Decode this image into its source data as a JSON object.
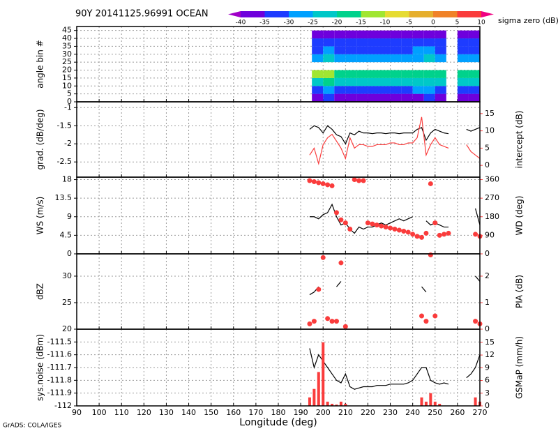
{
  "title": "90Y 20141125.96991 OCEAN",
  "footer": "GrADS: COLA/IGES",
  "colorbar": {
    "label": "sigma zero (dB)",
    "levels": [
      -40,
      -35,
      -30,
      -25,
      -20,
      -15,
      -10,
      -5,
      0,
      5,
      10
    ],
    "colors": [
      "#a000c8",
      "#6e00dc",
      "#1e3cff",
      "#00a0ff",
      "#00c8c8",
      "#00d28c",
      "#a0e632",
      "#e6dc32",
      "#e6af2d",
      "#f08228",
      "#fa3c3c",
      "#f00082"
    ]
  },
  "chart_data": [
    {
      "type": "heatmap",
      "ylabel": "angle bin #",
      "xlim": [
        90,
        270
      ],
      "xticks": [
        90,
        100,
        110,
        120,
        130,
        140,
        150,
        160,
        170,
        180,
        190,
        200,
        210,
        220,
        230,
        240,
        250,
        260,
        270
      ],
      "ylim": [
        0,
        47.5
      ],
      "yticks": [
        0,
        5,
        10,
        15,
        20,
        25,
        30,
        35,
        40,
        45
      ],
      "grid": true,
      "xbins": [
        195,
        200,
        205,
        210,
        215,
        220,
        225,
        230,
        235,
        240,
        245,
        250,
        255,
        260,
        265,
        270
      ],
      "ybins": [
        0,
        5,
        10,
        15,
        20,
        25,
        30,
        35,
        40,
        45
      ],
      "values": [
        [
          -38,
          -34,
          -38,
          -38,
          -38,
          -38,
          -38,
          -38,
          -38,
          -36,
          -34,
          -38,
          null,
          -38,
          -38
        ],
        [
          -32,
          -28,
          -32,
          -32,
          -32,
          -32,
          -32,
          -32,
          -32,
          -30,
          -29,
          -32,
          null,
          -32,
          -32
        ],
        [
          -24,
          -20,
          -24,
          -25,
          -24,
          -24,
          -24,
          -24,
          -24,
          -24,
          -22,
          -24,
          null,
          -24,
          -24
        ],
        [
          -12,
          -14,
          -18,
          -18,
          -18,
          -18,
          -18,
          -18,
          -18,
          -18,
          -18,
          -18,
          null,
          -18,
          -18
        ],
        [
          null,
          null,
          null,
          null,
          null,
          null,
          null,
          null,
          null,
          null,
          null,
          null,
          null,
          null,
          null
        ],
        [
          -26,
          -22,
          -26,
          -26,
          -26,
          -26,
          -26,
          -26,
          -26,
          -26,
          -24,
          -26,
          null,
          -26,
          -26
        ],
        [
          -31,
          -28,
          -31,
          -31,
          -31,
          -31,
          -31,
          -31,
          -31,
          -30,
          -28,
          -31,
          null,
          -31,
          -31
        ],
        [
          -35,
          -33,
          -35,
          -35,
          -35,
          -35,
          -35,
          -35,
          -35,
          -34,
          -33,
          -35,
          null,
          -35,
          -35
        ],
        [
          -39,
          -37,
          -39,
          -39,
          -39,
          -39,
          -39,
          -39,
          -39,
          -39,
          -37,
          -39,
          null,
          -39,
          -39
        ]
      ]
    },
    {
      "type": "line",
      "ylabel": "grad. (dB/deg)",
      "y2label": "intercept (dB)",
      "xlim": [
        90,
        270
      ],
      "xticks": [
        90,
        100,
        110,
        120,
        130,
        140,
        150,
        160,
        170,
        180,
        190,
        200,
        210,
        220,
        230,
        240,
        250,
        260,
        270
      ],
      "ylim": [
        -2.92,
        -0.84
      ],
      "yticks": [
        -2.5,
        -2,
        -1.5,
        -1
      ],
      "y2lim": [
        -3.4,
        18.4
      ],
      "y2ticks": [
        0,
        5,
        10,
        15
      ],
      "grid": true,
      "x": [
        194,
        196,
        198,
        200,
        202,
        204,
        206,
        208,
        210,
        212,
        214,
        216,
        218,
        220,
        222,
        224,
        226,
        228,
        230,
        232,
        234,
        236,
        238,
        240,
        242,
        244,
        246,
        248,
        250,
        252,
        254,
        256,
        258,
        260,
        262,
        264,
        266,
        268,
        270
      ],
      "series": [
        {
          "color": "#000000",
          "style": "line",
          "values": [
            -1.6,
            -1.5,
            -1.55,
            -1.7,
            -1.5,
            -1.6,
            -1.75,
            -1.8,
            -2.0,
            -1.7,
            -1.75,
            -1.65,
            -1.7,
            -1.7,
            -1.72,
            -1.7,
            -1.7,
            -1.72,
            -1.7,
            -1.7,
            -1.72,
            -1.7,
            -1.7,
            -1.7,
            -1.6,
            -1.55,
            -1.9,
            -1.7,
            -1.6,
            -1.65,
            -1.7,
            -1.72,
            null,
            null,
            null,
            -1.6,
            -1.65,
            -1.6,
            -1.55
          ]
        },
        {
          "color": "#fa3c3c",
          "style": "line",
          "axis": "y2",
          "values": [
            3,
            5,
            0.5,
            6,
            8,
            9,
            7,
            5,
            2,
            8,
            5,
            6,
            6,
            5.5,
            5.5,
            6,
            6,
            6,
            6.5,
            6.5,
            6,
            6,
            6.5,
            6.5,
            8,
            14,
            3,
            6,
            8,
            6,
            5.5,
            5,
            null,
            null,
            null,
            6,
            4,
            3,
            2
          ]
        }
      ]
    },
    {
      "type": "line",
      "ylabel": "WS (m/s)",
      "y2label": "WD (deg)",
      "xlim": [
        90,
        270
      ],
      "xticks": [
        90,
        100,
        110,
        120,
        130,
        140,
        150,
        160,
        170,
        180,
        190,
        200,
        210,
        220,
        230,
        240,
        250,
        260,
        270
      ],
      "ylim": [
        0,
        18.6
      ],
      "yticks": [
        0,
        4.5,
        9,
        13.5,
        18
      ],
      "y2lim": [
        0,
        372
      ],
      "y2ticks": [
        0,
        90,
        180,
        270,
        360
      ],
      "grid": true,
      "x": [
        194,
        196,
        198,
        200,
        202,
        204,
        206,
        208,
        210,
        212,
        214,
        216,
        218,
        220,
        222,
        224,
        226,
        228,
        230,
        232,
        234,
        236,
        238,
        240,
        242,
        244,
        246,
        248,
        250,
        252,
        254,
        256,
        258,
        260,
        262,
        264,
        266,
        268,
        270
      ],
      "series": [
        {
          "color": "#000000",
          "style": "line",
          "values": [
            9,
            9,
            8.5,
            9.5,
            10,
            12,
            9,
            7,
            7.5,
            6,
            5,
            6.5,
            6,
            6.5,
            6.5,
            7,
            7.5,
            7,
            7.5,
            8,
            8.5,
            8,
            8.5,
            9,
            null,
            null,
            8,
            7,
            7.5,
            7,
            6.5,
            6.5,
            null,
            null,
            null,
            null,
            null,
            11,
            7
          ]
        },
        {
          "color": "#fa3c3c",
          "style": "dots",
          "axis": "y2",
          "values": [
            355,
            350,
            345,
            340,
            335,
            330,
            200,
            165,
            150,
            120,
            360,
            355,
            355,
            150,
            145,
            140,
            135,
            130,
            125,
            120,
            115,
            110,
            105,
            95,
            85,
            80,
            100,
            340,
            150,
            90,
            95,
            100,
            null,
            null,
            null,
            null,
            null,
            95,
            85
          ]
        }
      ]
    },
    {
      "type": "line",
      "ylabel": "dBZ",
      "y2label": "PIA (dB)",
      "xlim": [
        90,
        270
      ],
      "xticks": [
        90,
        100,
        110,
        120,
        130,
        140,
        150,
        160,
        170,
        180,
        190,
        200,
        210,
        220,
        230,
        240,
        250,
        260,
        270
      ],
      "ylim": [
        20,
        34.2
      ],
      "yticks": [
        20,
        25,
        30
      ],
      "y2lim": [
        0,
        2.84
      ],
      "y2ticks": [
        0,
        1,
        2
      ],
      "grid": true,
      "x": [
        194,
        196,
        198,
        200,
        202,
        204,
        206,
        208,
        210,
        212,
        214,
        216,
        218,
        220,
        222,
        224,
        226,
        228,
        230,
        232,
        234,
        236,
        238,
        240,
        242,
        244,
        246,
        248,
        250,
        252,
        254,
        256,
        258,
        260,
        262,
        264,
        266,
        268,
        270
      ],
      "series": [
        {
          "color": "#000000",
          "style": "line",
          "values": [
            26.5,
            27,
            28,
            null,
            null,
            null,
            28,
            29,
            null,
            null,
            null,
            null,
            null,
            null,
            null,
            null,
            null,
            null,
            null,
            null,
            null,
            null,
            null,
            null,
            null,
            28,
            27,
            null,
            null,
            null,
            null,
            null,
            null,
            null,
            null,
            null,
            null,
            30,
            29
          ]
        },
        {
          "color": "#fa3c3c",
          "style": "dots",
          "axis": "y2",
          "values": [
            0.2,
            0.3,
            1.5,
            2.7,
            0.4,
            0.3,
            0.3,
            2.5,
            0.1,
            null,
            null,
            null,
            null,
            null,
            null,
            null,
            null,
            null,
            null,
            null,
            null,
            null,
            null,
            null,
            null,
            0.5,
            0.3,
            2.8,
            0.5,
            null,
            null,
            null,
            null,
            null,
            null,
            null,
            null,
            0.3,
            0.2
          ]
        }
      ]
    },
    {
      "type": "line",
      "ylabel": "sys.noise (dBm)",
      "y2label": "GSMaP (mm/h)",
      "xlabel": "Longitude (deg)",
      "xlim": [
        90,
        270
      ],
      "xticks": [
        90,
        100,
        110,
        120,
        130,
        140,
        150,
        160,
        170,
        180,
        190,
        200,
        210,
        220,
        230,
        240,
        250,
        260,
        270
      ],
      "ylim": [
        -112,
        -111.4
      ],
      "yticks": [
        -112,
        -111.9,
        -111.8,
        -111.7,
        -111.6,
        -111.5
      ],
      "y2lim": [
        0,
        18.1
      ],
      "y2ticks": [
        0,
        3,
        6,
        9,
        12,
        15
      ],
      "grid": true,
      "x": [
        194,
        196,
        198,
        200,
        202,
        204,
        206,
        208,
        210,
        212,
        214,
        216,
        218,
        220,
        222,
        224,
        226,
        228,
        230,
        232,
        234,
        236,
        238,
        240,
        242,
        244,
        246,
        248,
        250,
        252,
        254,
        256,
        258,
        260,
        262,
        264,
        266,
        268,
        270
      ],
      "series": [
        {
          "color": "#000000",
          "style": "line",
          "values": [
            -111.55,
            -111.7,
            -111.6,
            -111.65,
            -111.7,
            -111.75,
            -111.8,
            -111.82,
            -111.75,
            -111.85,
            -111.87,
            -111.86,
            -111.85,
            -111.85,
            -111.85,
            -111.84,
            -111.84,
            -111.84,
            -111.83,
            -111.83,
            -111.83,
            -111.83,
            -111.82,
            -111.8,
            -111.75,
            -111.7,
            -111.7,
            -111.8,
            -111.82,
            -111.83,
            -111.82,
            -111.83,
            null,
            null,
            null,
            -111.78,
            -111.75,
            -111.7,
            -111.6
          ]
        },
        {
          "color": "#fa3c3c",
          "style": "bars",
          "axis": "y2",
          "values": [
            2,
            4,
            8,
            15,
            1,
            0.5,
            0.3,
            1,
            0.5,
            0,
            0,
            0,
            0,
            0,
            0,
            0,
            0,
            0,
            0,
            0,
            0,
            0,
            0,
            0,
            0,
            2,
            1,
            3,
            1,
            0.5,
            0,
            0,
            null,
            null,
            null,
            0,
            0,
            2,
            1
          ]
        }
      ]
    }
  ]
}
